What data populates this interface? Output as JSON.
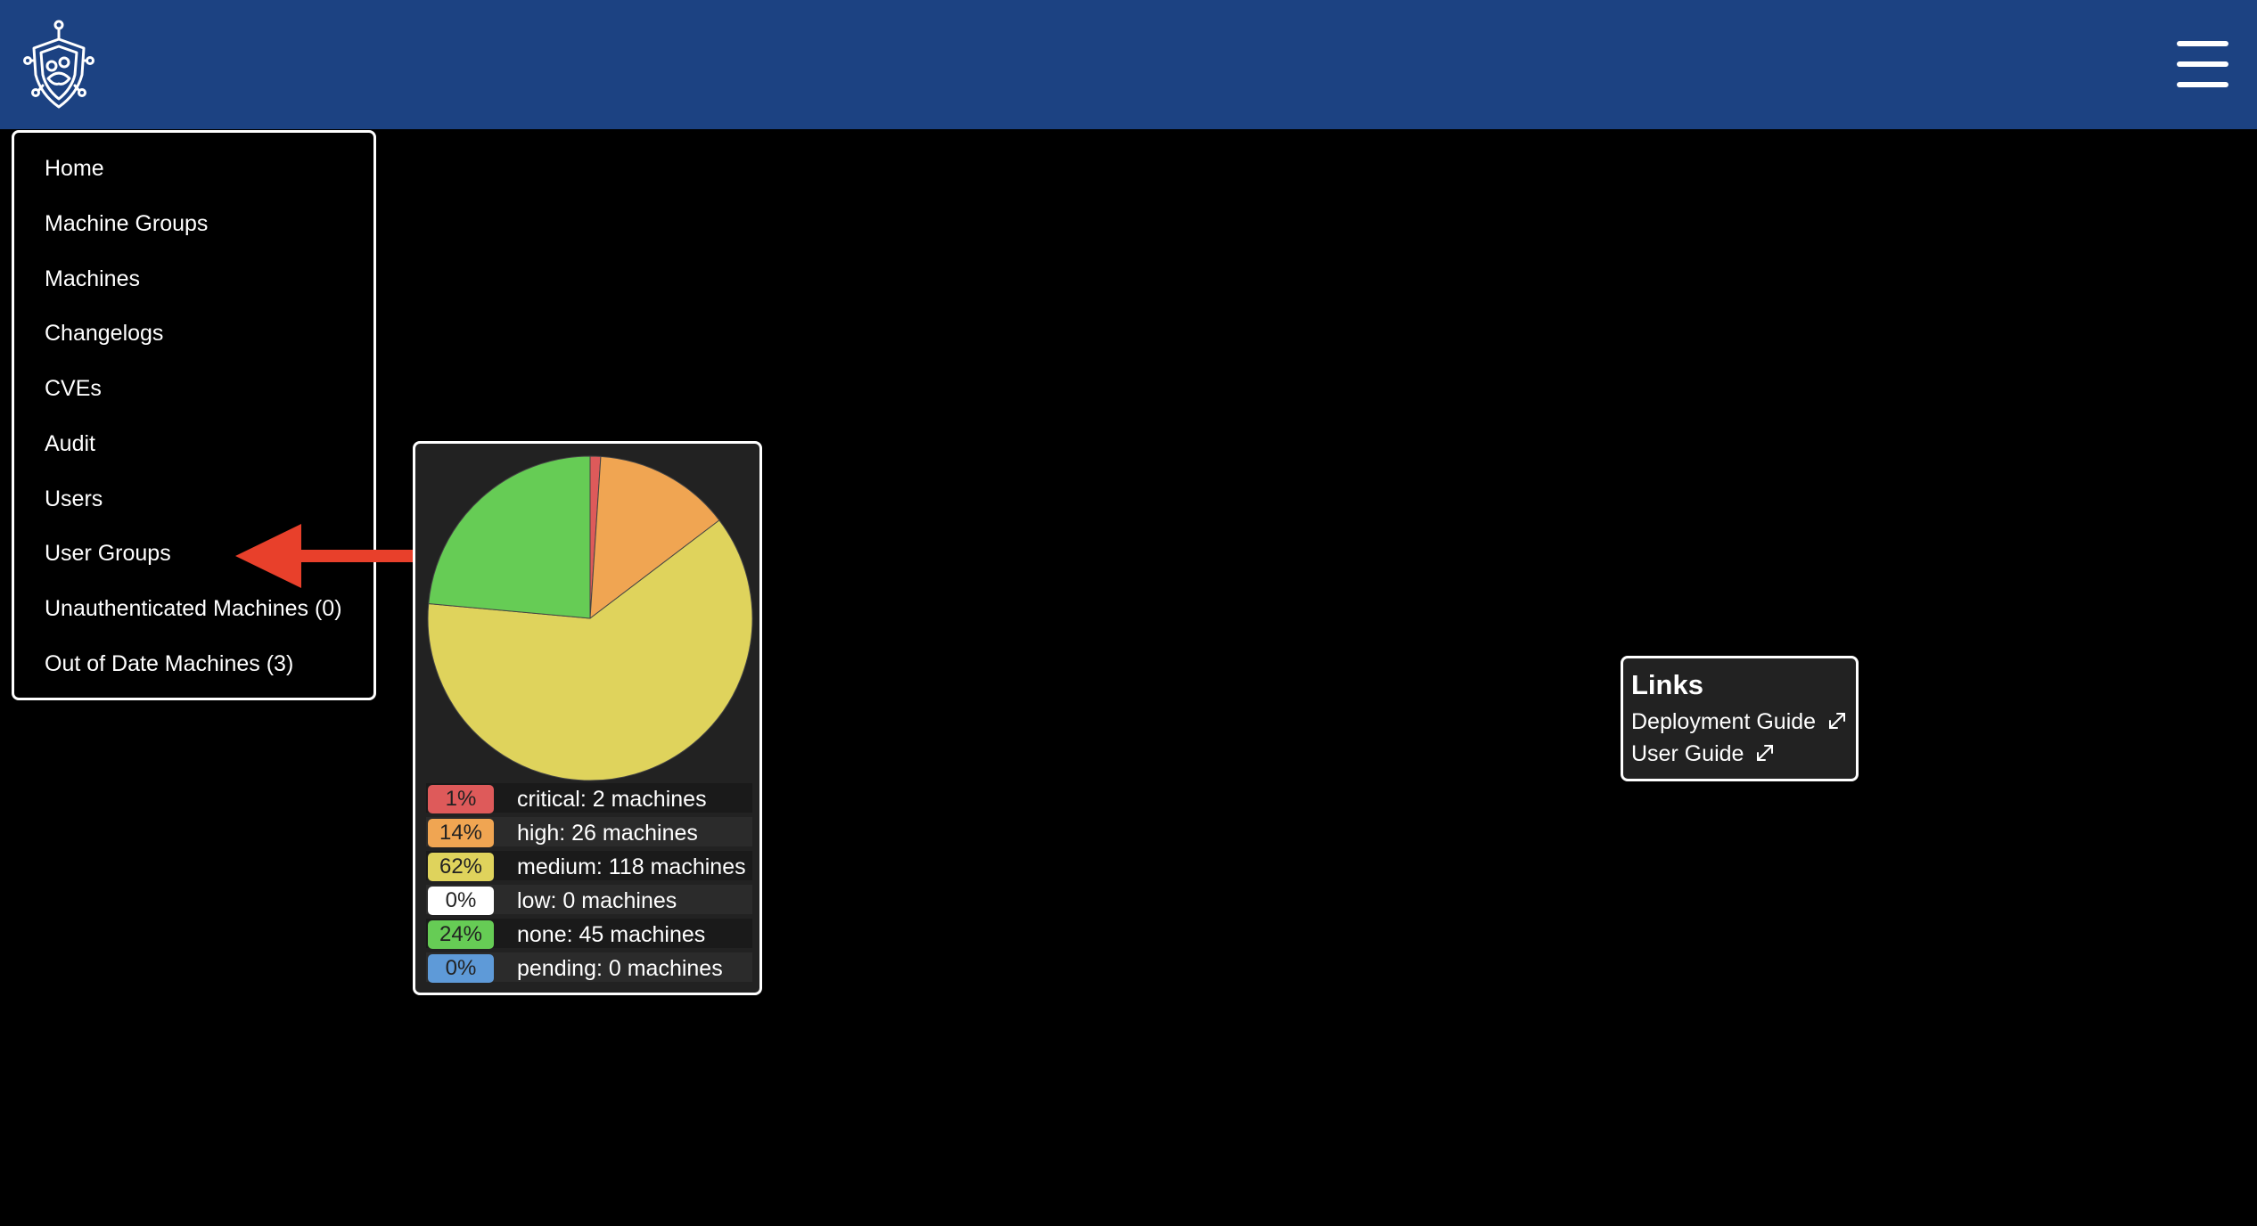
{
  "header": {
    "logo": "shield-logo-icon",
    "menu_icon": "hamburger-menu-icon",
    "background_color": "#1c4282"
  },
  "nav_menu": {
    "items": [
      {
        "label": "Home"
      },
      {
        "label": "Machine Groups"
      },
      {
        "label": "Machines"
      },
      {
        "label": "Changelogs"
      },
      {
        "label": "CVEs"
      },
      {
        "label": "Audit"
      },
      {
        "label": "Users"
      },
      {
        "label": "User Groups"
      },
      {
        "label": "Unauthenticated Machines (0)"
      },
      {
        "label": "Out of Date Machines (3)"
      }
    ]
  },
  "annotation": {
    "icon": "red-arrow-icon",
    "points_to": "User Groups",
    "color": "#e8402b"
  },
  "chart_data": {
    "type": "pie",
    "categories": [
      "critical",
      "high",
      "medium",
      "low",
      "none",
      "pending"
    ],
    "values": [
      2,
      26,
      118,
      0,
      45,
      0
    ],
    "colors": [
      "#de5a5a",
      "#f0a552",
      "#dfd35c",
      "#ffffff",
      "#66cc55",
      "#5e9ad8"
    ],
    "legend": [
      {
        "percent": "1%",
        "label": "critical: 2 machines"
      },
      {
        "percent": "14%",
        "label": "high: 26 machines"
      },
      {
        "percent": "62%",
        "label": "medium: 118 machines"
      },
      {
        "percent": "0%",
        "label": "low: 0 machines"
      },
      {
        "percent": "24%",
        "label": "none: 45 machines"
      },
      {
        "percent": "0%",
        "label": "pending: 0 machines"
      }
    ],
    "legend_placement": "bottom"
  },
  "links_card": {
    "title": "Links",
    "links": [
      {
        "label": "Deployment Guide",
        "icon": "external-link-icon"
      },
      {
        "label": "User Guide",
        "icon": "external-link-icon"
      }
    ]
  }
}
